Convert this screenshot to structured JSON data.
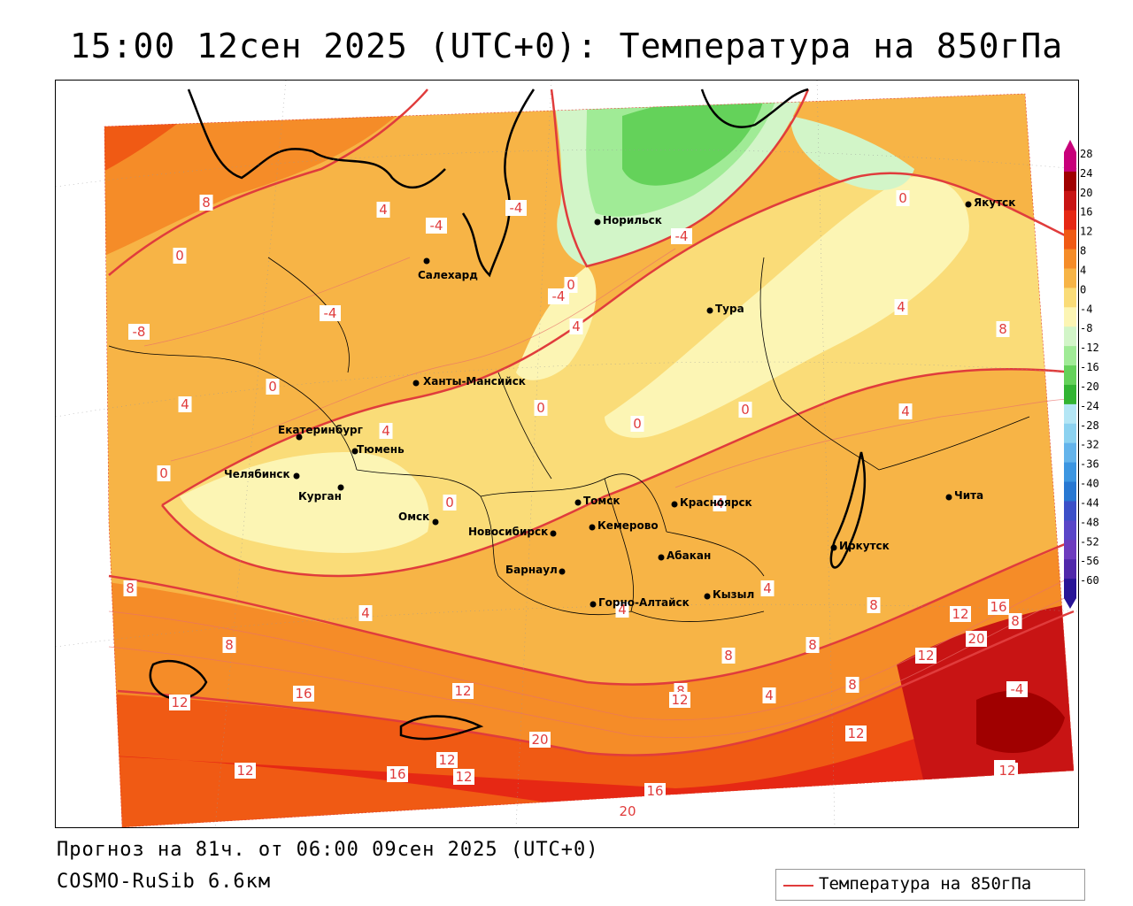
{
  "title": "15:00 12сен 2025 (UTC+0): Температура на 850гПа",
  "forecast_text": "Прогноз на 81ч. от 06:00 09сен 2025 (UTC+0)",
  "model_text": "COSMO-RuSib 6.6км",
  "legend": {
    "label": "Температура на 850гПа",
    "color": "#e03c3c"
  },
  "colorbar": {
    "labels": [
      "28",
      "24",
      "20",
      "16",
      "12",
      "8",
      "4",
      "0",
      "-4",
      "-8",
      "-12",
      "-16",
      "-20",
      "-24",
      "-28",
      "-32",
      "-36",
      "-40",
      "-44",
      "-48",
      "-52",
      "-56",
      "-60"
    ],
    "colors": [
      "#c8007a",
      "#a00000",
      "#c81414",
      "#e62814",
      "#f05a14",
      "#f58c28",
      "#f7b446",
      "#fadc78",
      "#fcf5b4",
      "#d2f5c8",
      "#a0eb96",
      "#64d25a",
      "#32b432",
      "#b4e6f5",
      "#8cd2f0",
      "#64b4eb",
      "#3c96e1",
      "#2878d2",
      "#3c50c8",
      "#5a46c8",
      "#6e3cbe",
      "#5028aa",
      "#281496"
    ]
  },
  "cities": [
    {
      "name": "Якутск"
    },
    {
      "name": "Норильск"
    },
    {
      "name": "Салехард"
    },
    {
      "name": "Тура"
    },
    {
      "name": "Ханты-Мансийск"
    },
    {
      "name": "Екатеринбург"
    },
    {
      "name": "Тюмень"
    },
    {
      "name": "Челябинск"
    },
    {
      "name": "Курган"
    },
    {
      "name": "Омск"
    },
    {
      "name": "Новосибирск"
    },
    {
      "name": "Томск"
    },
    {
      "name": "Кемерово"
    },
    {
      "name": "Красноярск"
    },
    {
      "name": "Барнаул"
    },
    {
      "name": "Абакан"
    },
    {
      "name": "Горно-Алтайск"
    },
    {
      "name": "Кызыл"
    },
    {
      "name": "Иркутск"
    },
    {
      "name": "Чита"
    }
  ],
  "isotherm_labels": [
    "8",
    "4",
    "0",
    "-4",
    "-8",
    "-4",
    "-4",
    "-4",
    "-4",
    "4",
    "0",
    "4",
    "8",
    "0",
    "4",
    "4",
    "0",
    "0",
    "0",
    "0",
    "4",
    "0",
    "4",
    "8",
    "4",
    "8",
    "4",
    "4",
    "8",
    "12",
    "16",
    "20",
    "8",
    "12",
    "8",
    "4",
    "8",
    "8",
    "8",
    "12",
    "16",
    "12",
    "16",
    "20",
    "12",
    "16",
    "12",
    "12",
    "12",
    "16",
    "20",
    "12",
    "12",
    "8",
    "-4",
    "0"
  ]
}
